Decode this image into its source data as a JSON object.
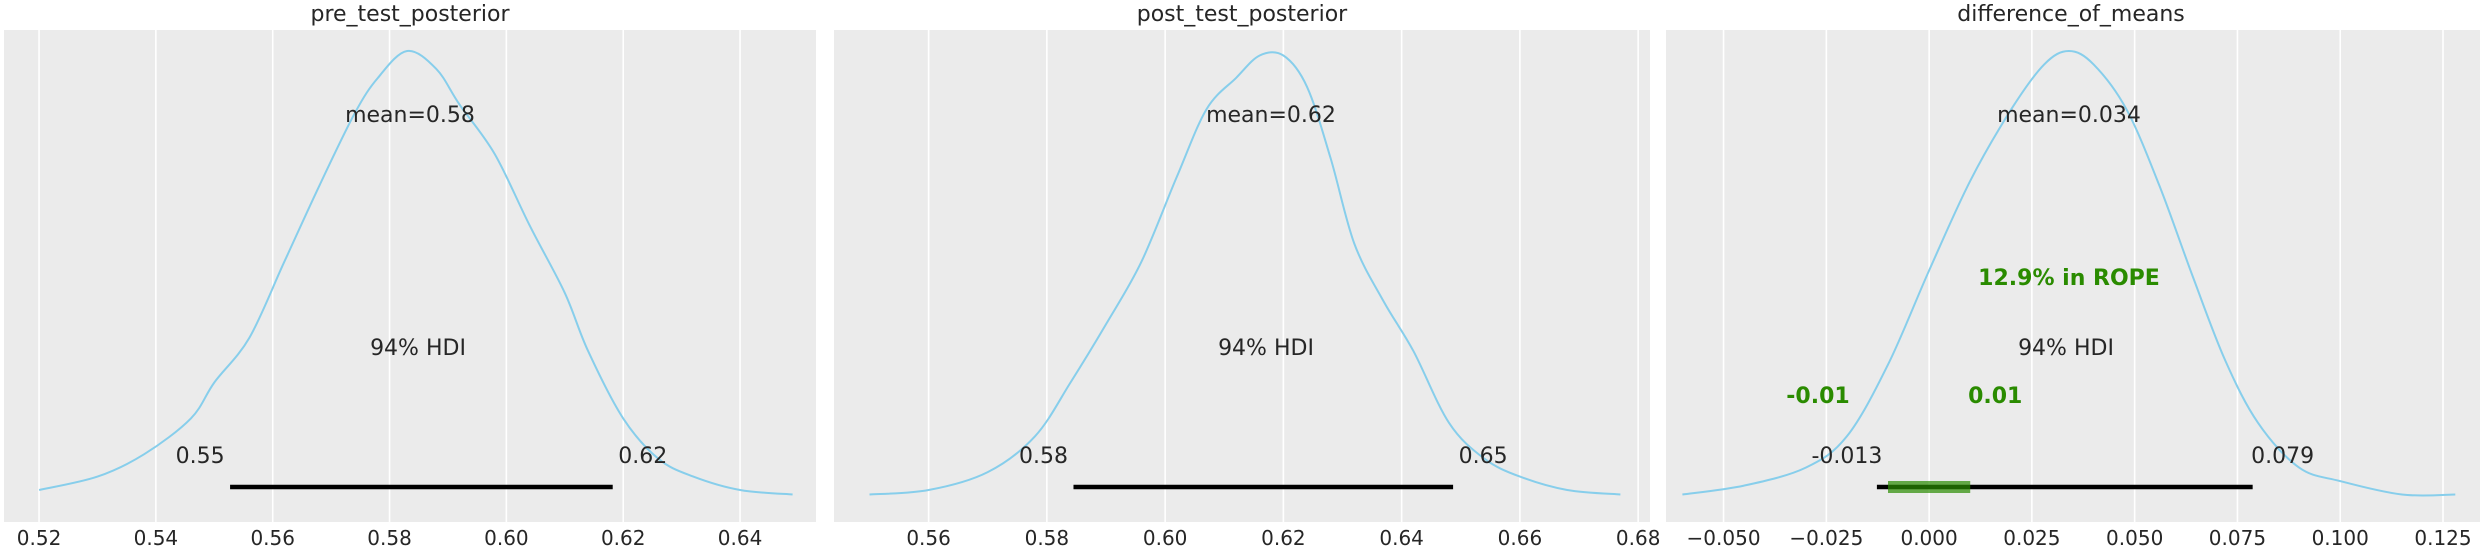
{
  "colors": {
    "kde": "#87ceeb",
    "rope": "#2a8b00",
    "panel_bg": "#ebebeb"
  },
  "chart_data": [
    {
      "type": "area",
      "title": "pre_test_posterior",
      "xlim": [
        0.514,
        0.653
      ],
      "ticks": [
        0.52,
        0.54,
        0.56,
        0.58,
        0.6,
        0.62,
        0.64
      ],
      "tick_labels": [
        "0.52",
        "0.54",
        "0.56",
        "0.58",
        "0.60",
        "0.62",
        "0.64"
      ],
      "mean_label": "mean=0.58",
      "hdi_label": "94% HDI",
      "hdi": [
        0.5527,
        0.6182
      ],
      "hdi_labels": [
        "0.55",
        "0.62"
      ],
      "density": {
        "x": [
          0.52,
          0.53,
          0.538,
          0.546,
          0.55,
          0.556,
          0.562,
          0.568,
          0.574,
          0.578,
          0.583,
          0.588,
          0.592,
          0.598,
          0.604,
          0.61,
          0.614,
          0.62,
          0.626,
          0.632,
          0.64,
          0.649
        ],
        "y": [
          0.02,
          0.05,
          0.1,
          0.18,
          0.26,
          0.36,
          0.53,
          0.7,
          0.86,
          0.94,
          1.0,
          0.96,
          0.88,
          0.77,
          0.61,
          0.46,
          0.33,
          0.18,
          0.09,
          0.05,
          0.02,
          0.01
        ]
      }
    },
    {
      "type": "area",
      "title": "post_test_posterior",
      "xlim": [
        0.544,
        0.682
      ],
      "ticks": [
        0.56,
        0.58,
        0.6,
        0.62,
        0.64,
        0.66,
        0.68
      ],
      "tick_labels": [
        "0.56",
        "0.58",
        "0.60",
        "0.62",
        "0.64",
        "0.66",
        "0.68"
      ],
      "mean_label": "mean=0.62",
      "hdi_label": "94% HDI",
      "hdi": [
        0.5845,
        0.6487
      ],
      "hdi_labels": [
        "0.58",
        "0.65"
      ],
      "density": {
        "x": [
          0.55,
          0.56,
          0.57,
          0.578,
          0.584,
          0.59,
          0.596,
          0.602,
          0.607,
          0.612,
          0.616,
          0.62,
          0.624,
          0.628,
          0.632,
          0.637,
          0.642,
          0.648,
          0.654,
          0.66,
          0.668,
          0.677
        ],
        "y": [
          0.01,
          0.02,
          0.06,
          0.14,
          0.26,
          0.39,
          0.53,
          0.72,
          0.87,
          0.94,
          0.99,
          0.99,
          0.92,
          0.76,
          0.57,
          0.44,
          0.33,
          0.17,
          0.09,
          0.05,
          0.02,
          0.01
        ]
      }
    },
    {
      "type": "area",
      "title": "difference_of_means",
      "xlim": [
        -0.064,
        0.134
      ],
      "ticks": [
        -0.05,
        -0.025,
        0.0,
        0.025,
        0.05,
        0.075,
        0.1,
        0.125
      ],
      "tick_labels": [
        "−0.050",
        "−0.025",
        "0.000",
        "0.025",
        "0.050",
        "0.075",
        "0.100",
        "0.125"
      ],
      "mean_label": "mean=0.034",
      "hdi_label": "94% HDI",
      "hdi": [
        -0.0127,
        0.0787
      ],
      "hdi_labels": [
        "-0.013",
        "0.079"
      ],
      "rope": [
        -0.01,
        0.01
      ],
      "rope_labels": [
        "-0.01",
        "0.01"
      ],
      "rope_text": "12.9% in ROPE",
      "density": {
        "x": [
          -0.06,
          -0.045,
          -0.03,
          -0.02,
          -0.01,
          0.0,
          0.01,
          0.02,
          0.028,
          0.034,
          0.04,
          0.048,
          0.056,
          0.064,
          0.072,
          0.08,
          0.09,
          0.1,
          0.115,
          0.128
        ],
        "y": [
          0.01,
          0.03,
          0.07,
          0.14,
          0.3,
          0.51,
          0.71,
          0.87,
          0.97,
          1.0,
          0.97,
          0.87,
          0.7,
          0.5,
          0.31,
          0.17,
          0.07,
          0.04,
          0.01,
          0.01
        ]
      }
    }
  ]
}
